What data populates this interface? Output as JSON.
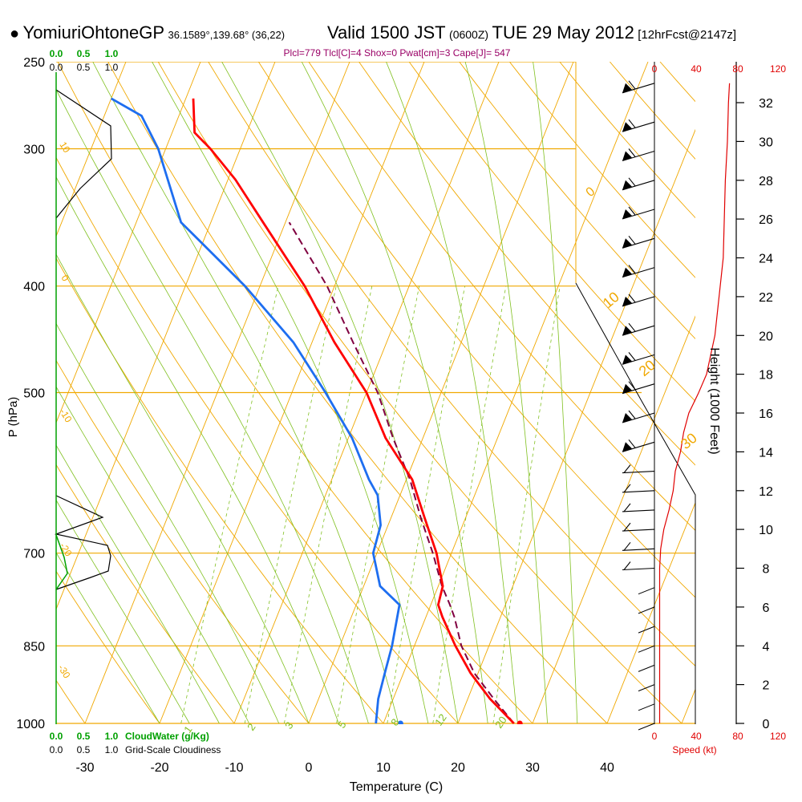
{
  "header": {
    "station": "YomiuriOhtoneGP",
    "coords": "36.1589°,139.68° (36,22)",
    "valid_a": "Valid 1500 JST",
    "valid_z": "(0600Z)",
    "valid_b": "TUE 29 May 2012",
    "forecast": "[12hrFcst@2147z]",
    "indices": "Plcl=779 Tlcl[C]=4 Shox=0 Pwat[cm]=3 Cape[J]= 547"
  },
  "colors": {
    "isobar_isotherm": "#f0a800",
    "dry_adiabat": "#f0a800",
    "moist_adiabat": "#80c020",
    "mixing_ratio": "#80c020",
    "temperature": "#ff0000",
    "dewpoint": "#1e6ef0",
    "parcel": "#800040",
    "cloudwater": "#00a000",
    "wind_speed": "#e00000",
    "indices_text": "#990066"
  },
  "chart_data": {
    "type": "skew-t",
    "title": "",
    "xlabel": "Temperature (C)",
    "ylabel": "P (hPa)",
    "y2label": "Height (1000 Feet)",
    "x_ticks": [
      -30,
      -20,
      -10,
      0,
      10,
      20,
      30,
      40
    ],
    "pressure_ticks": [
      250,
      300,
      400,
      500,
      700,
      850,
      1000
    ],
    "height_ticks": [
      0,
      2,
      4,
      6,
      8,
      10,
      12,
      14,
      16,
      18,
      20,
      22,
      24,
      26,
      28,
      30,
      32
    ],
    "mixing_ratio_labels": [
      "1",
      "2",
      "3",
      "5",
      "8",
      "12",
      "20"
    ],
    "moist_adiabat_labels": [
      "0",
      "10",
      "20",
      "30"
    ],
    "dry_adiabat_labels": [
      "10",
      "0",
      "-10",
      "-20",
      "-30"
    ],
    "temperature_profile": [
      {
        "p": 1000,
        "t": 27.5
      },
      {
        "p": 950,
        "t": 23
      },
      {
        "p": 900,
        "t": 19
      },
      {
        "p": 850,
        "t": 15.5
      },
      {
        "p": 800,
        "t": 12.2
      },
      {
        "p": 780,
        "t": 11.0
      },
      {
        "p": 750,
        "t": 10.6
      },
      {
        "p": 700,
        "t": 8.0
      },
      {
        "p": 650,
        "t": 4.5
      },
      {
        "p": 600,
        "t": 0.8
      },
      {
        "p": 550,
        "t": -5.0
      },
      {
        "p": 500,
        "t": -10.0
      },
      {
        "p": 450,
        "t": -17.0
      },
      {
        "p": 400,
        "t": -24.0
      },
      {
        "p": 350,
        "t": -33.0
      },
      {
        "p": 320,
        "t": -39.0
      },
      {
        "p": 300,
        "t": -44.0
      },
      {
        "p": 290,
        "t": -47.0
      },
      {
        "p": 270,
        "t": -49.0
      }
    ],
    "dewpoint_profile": [
      {
        "p": 1000,
        "t": 9.0
      },
      {
        "p": 950,
        "t": 8.0
      },
      {
        "p": 900,
        "t": 7.5
      },
      {
        "p": 850,
        "t": 7.0
      },
      {
        "p": 780,
        "t": 5.8
      },
      {
        "p": 750,
        "t": 2.2
      },
      {
        "p": 700,
        "t": -0.5
      },
      {
        "p": 660,
        "t": -1.0
      },
      {
        "p": 620,
        "t": -3.0
      },
      {
        "p": 600,
        "t": -5.0
      },
      {
        "p": 550,
        "t": -9.5
      },
      {
        "p": 500,
        "t": -15.5
      },
      {
        "p": 450,
        "t": -22.5
      },
      {
        "p": 400,
        "t": -32.0
      },
      {
        "p": 350,
        "t": -44.0
      },
      {
        "p": 300,
        "t": -51.0
      },
      {
        "p": 280,
        "t": -55.0
      },
      {
        "p": 270,
        "t": -60.0
      }
    ],
    "parcel_profile": [
      {
        "p": 1000,
        "t": 27.5
      },
      {
        "p": 950,
        "t": 23.5
      },
      {
        "p": 900,
        "t": 19.5
      },
      {
        "p": 850,
        "t": 16.3
      },
      {
        "p": 800,
        "t": 13.8
      },
      {
        "p": 779,
        "t": 12.5
      },
      {
        "p": 750,
        "t": 10.5
      },
      {
        "p": 700,
        "t": 7.5
      },
      {
        "p": 650,
        "t": 4.0
      },
      {
        "p": 600,
        "t": 0.5
      },
      {
        "p": 550,
        "t": -4.0
      },
      {
        "p": 500,
        "t": -8.5
      },
      {
        "p": 450,
        "t": -14.5
      },
      {
        "p": 400,
        "t": -21.0
      },
      {
        "p": 350,
        "t": -29.5
      }
    ],
    "surface_temperature": 28.3,
    "surface_dewpoint": 12.3,
    "wind_speed_profile_kt": [
      {
        "h": 0,
        "s": 5
      },
      {
        "h": 2,
        "s": 5
      },
      {
        "h": 4,
        "s": 5
      },
      {
        "h": 6,
        "s": 5
      },
      {
        "h": 8,
        "s": 5
      },
      {
        "h": 9,
        "s": 6
      },
      {
        "h": 10,
        "s": 9
      },
      {
        "h": 11,
        "s": 14
      },
      {
        "h": 12,
        "s": 18
      },
      {
        "h": 13,
        "s": 20
      },
      {
        "h": 14,
        "s": 25
      },
      {
        "h": 15,
        "s": 28
      },
      {
        "h": 16,
        "s": 33
      },
      {
        "h": 17,
        "s": 42
      },
      {
        "h": 18,
        "s": 50
      },
      {
        "h": 20,
        "s": 58
      },
      {
        "h": 22,
        "s": 62
      },
      {
        "h": 24,
        "s": 66
      },
      {
        "h": 26,
        "s": 67
      },
      {
        "h": 28,
        "s": 68
      },
      {
        "h": 30,
        "s": 70
      },
      {
        "h": 32,
        "s": 71
      },
      {
        "h": 33,
        "s": 72
      }
    ],
    "wind_barb_heights": [
      33,
      31,
      29.5,
      28,
      26.5,
      25,
      23.5,
      22,
      20.5,
      19,
      17.5,
      16,
      14.5,
      13,
      12,
      11,
      10,
      9,
      8,
      7,
      6,
      5,
      4,
      3,
      2,
      1,
      0
    ],
    "cloudwater_axis_ticks": [
      "0.0",
      "0.5",
      "1.0"
    ],
    "cloudiness_axis_ticks": [
      "0.0",
      "0.5",
      "1.0"
    ],
    "cloudwater_legend": "CloudWater (g/Kg)",
    "cloudiness_legend": "Grid-Scale Cloudiness",
    "speed_axis_ticks": [
      "0",
      "40",
      "80",
      "120"
    ],
    "speed_axis_label": "Speed (kt)",
    "grid": true
  }
}
